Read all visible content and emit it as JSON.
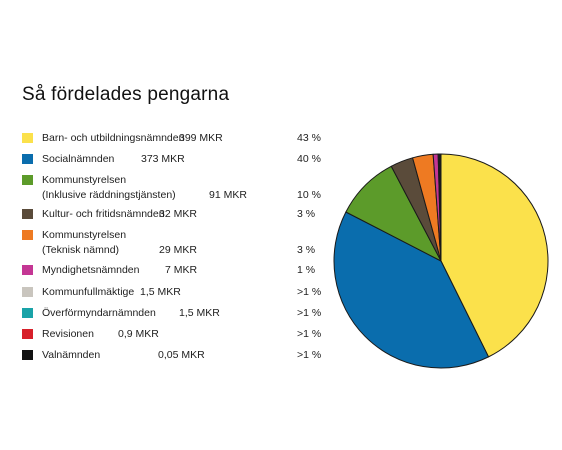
{
  "page": {
    "title": "Så fördelades pengarna"
  },
  "chart_data": {
    "type": "pie",
    "title": "Så fördelades pengarna",
    "unit": "MKR",
    "slices": [
      {
        "line1": "Barn- och utbildningsnämnden",
        "line2": "",
        "value": 399,
        "value_label": "399 MKR",
        "percent_label": "43 %",
        "color": "#FBE14B"
      },
      {
        "line1": "Socialnämnden",
        "line2": "",
        "value": 373,
        "value_label": "373 MKR",
        "percent_label": "40 %",
        "color": "#0A6DAD"
      },
      {
        "line1": "Kommunstyrelsen",
        "line2": "(Inklusive räddningstjänsten)",
        "value": 91,
        "value_label": "91 MKR",
        "percent_label": "10 %",
        "color": "#5C9B2A"
      },
      {
        "line1": "Kultur- och fritidsnämnden",
        "line2": "",
        "value": 32,
        "value_label": "32 MKR",
        "percent_label": "3 %",
        "color": "#5A4B3A"
      },
      {
        "line1": "Kommunstyrelsen",
        "line2": "(Teknisk nämnd)",
        "value": 29,
        "value_label": "29 MKR",
        "percent_label": "3 %",
        "color": "#EE7A22"
      },
      {
        "line1": "Myndighetsnämnden",
        "line2": "",
        "value": 7,
        "value_label": "7 MKR",
        "percent_label": "1 %",
        "color": "#C43694"
      },
      {
        "line1": "Kommunfullmäktige",
        "line2": "",
        "value": 1.5,
        "value_label": "1,5 MKR",
        "percent_label": ">1 %",
        "color": "#C9C5BE"
      },
      {
        "line1": "Överförmyndarnämnden",
        "line2": "",
        "value": 1.5,
        "value_label": "1,5 MKR",
        "percent_label": ">1 %",
        "color": "#1AA3A8"
      },
      {
        "line1": "Revisionen",
        "line2": "",
        "value": 0.9,
        "value_label": "0,9 MKR",
        "percent_label": ">1 %",
        "color": "#D7202A"
      },
      {
        "line1": "Valnämnden",
        "line2": "",
        "value": 0.05,
        "value_label": "0,05 MKR",
        "percent_label": ">1 %",
        "color": "#111111"
      }
    ]
  }
}
